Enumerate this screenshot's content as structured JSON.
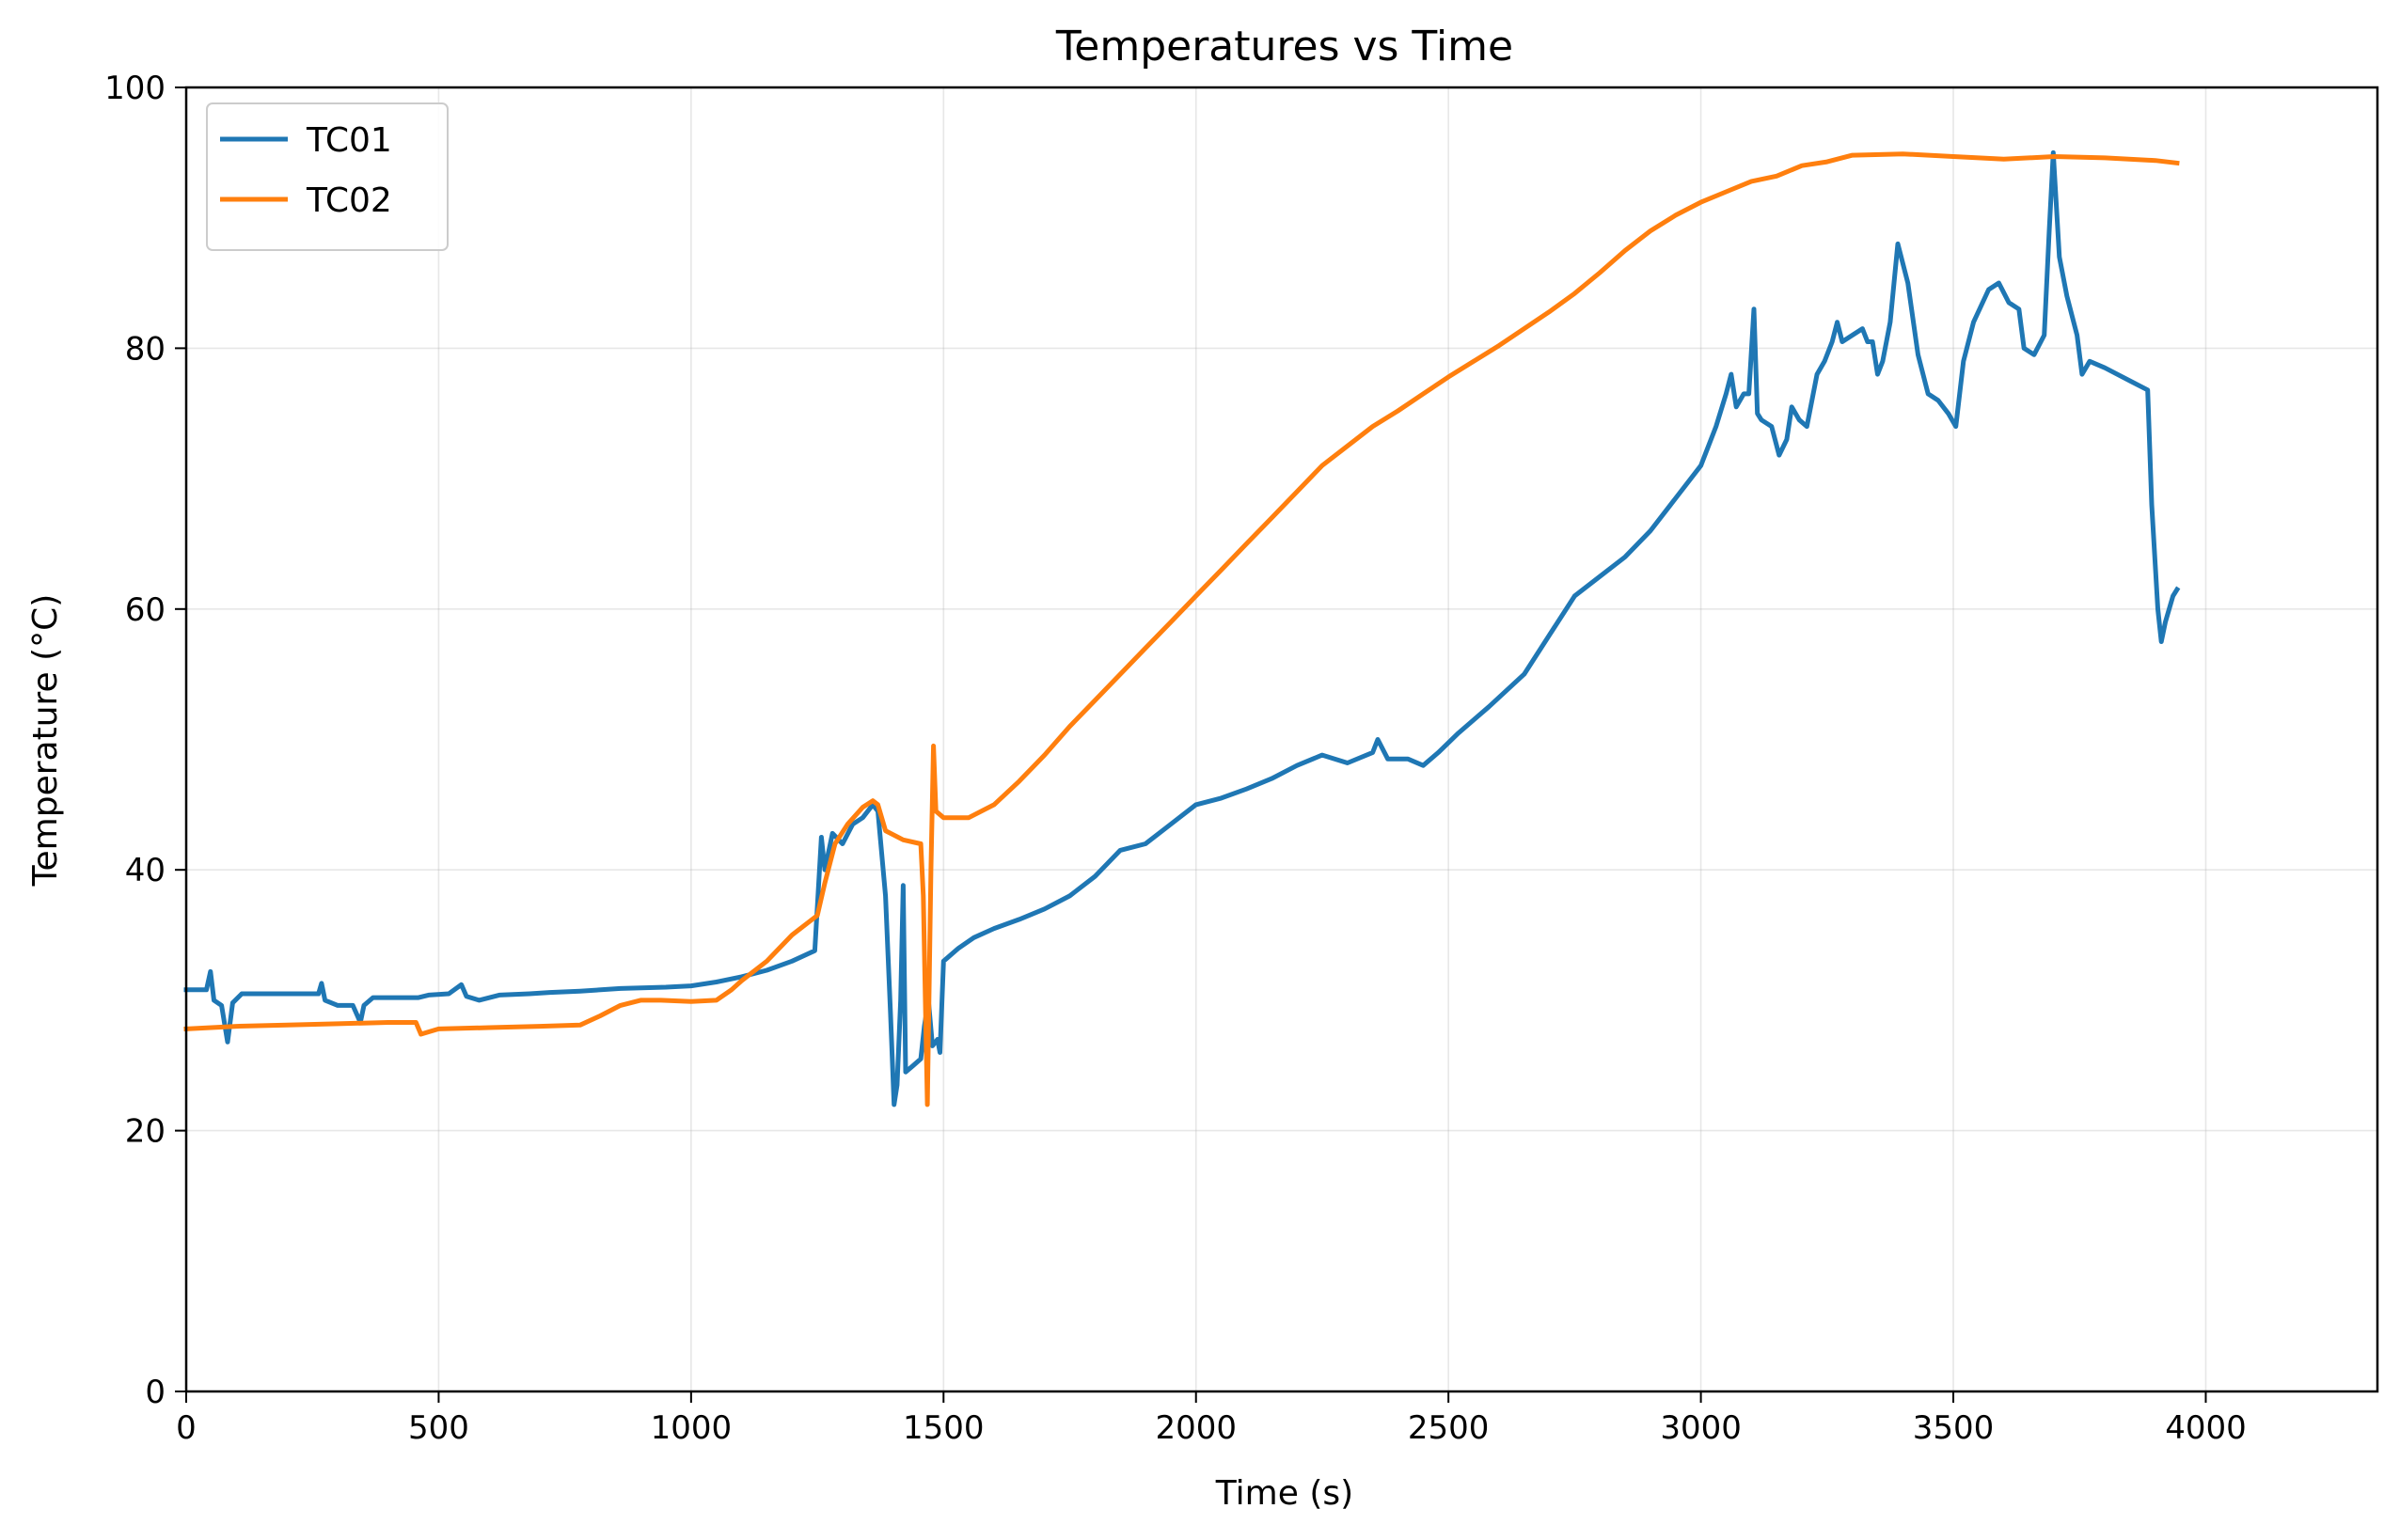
{
  "chart_data": {
    "type": "line",
    "title": "Temperatures vs Time",
    "xlabel": "Time (s)",
    "ylabel": "Temperature (°C)",
    "xlim": [
      0,
      4340
    ],
    "ylim": [
      0,
      100
    ],
    "xticks": [
      0,
      500,
      1000,
      1500,
      2000,
      2500,
      3000,
      3500,
      4000
    ],
    "yticks": [
      0,
      20,
      40,
      60,
      80,
      100
    ],
    "grid": true,
    "legend": "top-left",
    "series": [
      {
        "name": "TC01",
        "color": "#1f77b4",
        "points": [
          [
            0,
            30.8
          ],
          [
            40,
            30.8
          ],
          [
            48,
            32.2
          ],
          [
            55,
            30.0
          ],
          [
            70,
            29.6
          ],
          [
            82,
            26.8
          ],
          [
            92,
            29.8
          ],
          [
            110,
            30.5
          ],
          [
            150,
            30.5
          ],
          [
            200,
            30.5
          ],
          [
            262,
            30.5
          ],
          [
            268,
            31.3
          ],
          [
            275,
            30.0
          ],
          [
            300,
            29.6
          ],
          [
            330,
            29.6
          ],
          [
            345,
            28.3
          ],
          [
            352,
            29.6
          ],
          [
            370,
            30.2
          ],
          [
            420,
            30.2
          ],
          [
            460,
            30.2
          ],
          [
            480,
            30.4
          ],
          [
            520,
            30.5
          ],
          [
            545,
            31.2
          ],
          [
            555,
            30.3
          ],
          [
            580,
            30.0
          ],
          [
            620,
            30.4
          ],
          [
            680,
            30.5
          ],
          [
            720,
            30.6
          ],
          [
            780,
            30.7
          ],
          [
            860,
            30.9
          ],
          [
            950,
            31.0
          ],
          [
            1000,
            31.1
          ],
          [
            1050,
            31.4
          ],
          [
            1100,
            31.8
          ],
          [
            1150,
            32.3
          ],
          [
            1200,
            33.0
          ],
          [
            1245,
            33.8
          ],
          [
            1258,
            42.5
          ],
          [
            1265,
            40.0
          ],
          [
            1280,
            42.8
          ],
          [
            1300,
            42.0
          ],
          [
            1320,
            43.5
          ],
          [
            1340,
            44.0
          ],
          [
            1360,
            45.0
          ],
          [
            1370,
            44.5
          ],
          [
            1385,
            38.0
          ],
          [
            1395,
            29.0
          ],
          [
            1402,
            22.0
          ],
          [
            1408,
            23.5
          ],
          [
            1415,
            30.0
          ],
          [
            1420,
            38.8
          ],
          [
            1425,
            24.5
          ],
          [
            1440,
            25.0
          ],
          [
            1455,
            25.5
          ],
          [
            1462,
            28.0
          ],
          [
            1470,
            30.0
          ],
          [
            1478,
            26.5
          ],
          [
            1488,
            27.0
          ],
          [
            1493,
            26.0
          ],
          [
            1500,
            33.0
          ],
          [
            1530,
            34.0
          ],
          [
            1560,
            34.8
          ],
          [
            1600,
            35.5
          ],
          [
            1650,
            36.2
          ],
          [
            1700,
            37.0
          ],
          [
            1750,
            38.0
          ],
          [
            1800,
            39.5
          ],
          [
            1850,
            41.5
          ],
          [
            1900,
            42.0
          ],
          [
            1950,
            43.5
          ],
          [
            2000,
            45.0
          ],
          [
            2050,
            45.5
          ],
          [
            2100,
            46.2
          ],
          [
            2150,
            47.0
          ],
          [
            2200,
            48.0
          ],
          [
            2250,
            48.8
          ],
          [
            2300,
            48.2
          ],
          [
            2350,
            49.0
          ],
          [
            2360,
            50.0
          ],
          [
            2380,
            48.5
          ],
          [
            2420,
            48.5
          ],
          [
            2450,
            48.0
          ],
          [
            2480,
            49.0
          ],
          [
            2520,
            50.5
          ],
          [
            2580,
            52.5
          ],
          [
            2650,
            55.0
          ],
          [
            2700,
            58.0
          ],
          [
            2750,
            61.0
          ],
          [
            2800,
            62.5
          ],
          [
            2850,
            64.0
          ],
          [
            2900,
            66.0
          ],
          [
            2950,
            68.5
          ],
          [
            3000,
            71.0
          ],
          [
            3030,
            74.0
          ],
          [
            3050,
            76.5
          ],
          [
            3060,
            78.0
          ],
          [
            3070,
            75.5
          ],
          [
            3085,
            76.5
          ],
          [
            3095,
            76.5
          ],
          [
            3105,
            83.0
          ],
          [
            3112,
            75.0
          ],
          [
            3120,
            74.5
          ],
          [
            3140,
            74.0
          ],
          [
            3155,
            71.8
          ],
          [
            3170,
            73.0
          ],
          [
            3180,
            75.5
          ],
          [
            3195,
            74.5
          ],
          [
            3210,
            74.0
          ],
          [
            3230,
            78.0
          ],
          [
            3245,
            79.0
          ],
          [
            3260,
            80.5
          ],
          [
            3270,
            82.0
          ],
          [
            3280,
            80.5
          ],
          [
            3300,
            81.0
          ],
          [
            3320,
            81.5
          ],
          [
            3330,
            80.5
          ],
          [
            3340,
            80.5
          ],
          [
            3350,
            78.0
          ],
          [
            3360,
            79.0
          ],
          [
            3375,
            82.0
          ],
          [
            3390,
            88.0
          ],
          [
            3410,
            85.0
          ],
          [
            3430,
            79.5
          ],
          [
            3450,
            76.5
          ],
          [
            3470,
            76.0
          ],
          [
            3490,
            75.0
          ],
          [
            3505,
            74.0
          ],
          [
            3520,
            79.0
          ],
          [
            3540,
            82.0
          ],
          [
            3570,
            84.5
          ],
          [
            3590,
            85.0
          ],
          [
            3610,
            83.5
          ],
          [
            3630,
            83.0
          ],
          [
            3640,
            80.0
          ],
          [
            3660,
            79.5
          ],
          [
            3680,
            81.0
          ],
          [
            3690,
            89.0
          ],
          [
            3698,
            95.0
          ],
          [
            3710,
            87.0
          ],
          [
            3725,
            84.0
          ],
          [
            3745,
            81.0
          ],
          [
            3755,
            78.0
          ],
          [
            3770,
            79.0
          ],
          [
            3800,
            78.5
          ],
          [
            3850,
            77.5
          ],
          [
            3885,
            76.8
          ],
          [
            3893,
            68.0
          ],
          [
            3905,
            60.0
          ],
          [
            3912,
            57.5
          ],
          [
            3920,
            59.0
          ],
          [
            3935,
            61.0
          ],
          [
            3943,
            61.5
          ]
        ]
      },
      {
        "name": "TC02",
        "color": "#ff7f0e",
        "points": [
          [
            0,
            27.8
          ],
          [
            100,
            28.0
          ],
          [
            200,
            28.1
          ],
          [
            300,
            28.2
          ],
          [
            400,
            28.3
          ],
          [
            455,
            28.3
          ],
          [
            465,
            27.4
          ],
          [
            500,
            27.8
          ],
          [
            600,
            27.9
          ],
          [
            700,
            28.0
          ],
          [
            780,
            28.1
          ],
          [
            820,
            28.8
          ],
          [
            860,
            29.6
          ],
          [
            900,
            30.0
          ],
          [
            940,
            30.0
          ],
          [
            1000,
            29.9
          ],
          [
            1050,
            30.0
          ],
          [
            1080,
            30.8
          ],
          [
            1100,
            31.5
          ],
          [
            1150,
            33.0
          ],
          [
            1200,
            35.0
          ],
          [
            1250,
            36.5
          ],
          [
            1265,
            39.0
          ],
          [
            1285,
            42.0
          ],
          [
            1310,
            43.5
          ],
          [
            1340,
            44.8
          ],
          [
            1360,
            45.3
          ],
          [
            1370,
            45.0
          ],
          [
            1385,
            43.0
          ],
          [
            1420,
            42.3
          ],
          [
            1455,
            42.0
          ],
          [
            1460,
            38.0
          ],
          [
            1468,
            22.0
          ],
          [
            1475,
            40.0
          ],
          [
            1480,
            49.5
          ],
          [
            1485,
            44.5
          ],
          [
            1500,
            44.0
          ],
          [
            1550,
            44.0
          ],
          [
            1600,
            45.0
          ],
          [
            1650,
            46.8
          ],
          [
            1700,
            48.8
          ],
          [
            1750,
            51.0
          ],
          [
            1800,
            53.0
          ],
          [
            1850,
            55.0
          ],
          [
            1900,
            57.0
          ],
          [
            1950,
            59.0
          ],
          [
            2000,
            61.0
          ],
          [
            2050,
            63.0
          ],
          [
            2100,
            65.0
          ],
          [
            2150,
            67.0
          ],
          [
            2200,
            69.0
          ],
          [
            2250,
            71.0
          ],
          [
            2300,
            72.5
          ],
          [
            2350,
            74.0
          ],
          [
            2400,
            75.2
          ],
          [
            2450,
            76.5
          ],
          [
            2500,
            77.8
          ],
          [
            2550,
            79.0
          ],
          [
            2600,
            80.2
          ],
          [
            2650,
            81.5
          ],
          [
            2700,
            82.8
          ],
          [
            2750,
            84.2
          ],
          [
            2800,
            85.8
          ],
          [
            2850,
            87.5
          ],
          [
            2900,
            89.0
          ],
          [
            2950,
            90.2
          ],
          [
            3000,
            91.2
          ],
          [
            3050,
            92.0
          ],
          [
            3100,
            92.8
          ],
          [
            3150,
            93.2
          ],
          [
            3200,
            94.0
          ],
          [
            3250,
            94.3
          ],
          [
            3300,
            94.8
          ],
          [
            3400,
            94.9
          ],
          [
            3500,
            94.7
          ],
          [
            3600,
            94.5
          ],
          [
            3700,
            94.7
          ],
          [
            3800,
            94.6
          ],
          [
            3900,
            94.4
          ],
          [
            3943,
            94.2
          ]
        ]
      }
    ]
  }
}
